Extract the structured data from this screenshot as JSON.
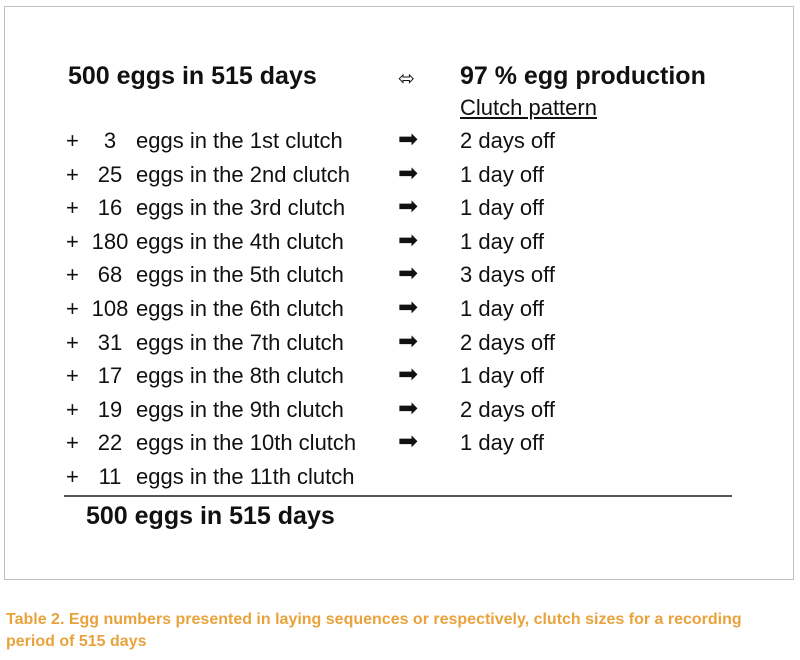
{
  "table": {
    "header_left": "500 eggs in 515 days",
    "header_arrow": "⬄",
    "header_right": "97 % egg production",
    "subheader": "Clutch pattern",
    "rows": [
      {
        "plus": "+",
        "count": "3",
        "desc": "eggs in the 1st clutch",
        "arrow": "➡",
        "off": "2 days off"
      },
      {
        "plus": "+",
        "count": "25",
        "desc": "eggs in the 2nd clutch",
        "arrow": "➡",
        "off": "1 day off"
      },
      {
        "plus": "+",
        "count": "16",
        "desc": "eggs in the 3rd clutch",
        "arrow": "➡",
        "off": "1 day off"
      },
      {
        "plus": "+",
        "count": "180",
        "desc": "eggs in the 4th clutch",
        "arrow": "➡",
        "off": "1 day off"
      },
      {
        "plus": "+",
        "count": "68",
        "desc": "eggs in the 5th clutch",
        "arrow": "➡",
        "off": "3 days off"
      },
      {
        "plus": "+",
        "count": "108",
        "desc": "eggs in the 6th clutch",
        "arrow": "➡",
        "off": "1 day off"
      },
      {
        "plus": "+",
        "count": "31",
        "desc": "eggs in the 7th clutch",
        "arrow": "➡",
        "off": "2 days off"
      },
      {
        "plus": "+",
        "count": "17",
        "desc": "eggs in the 8th clutch",
        "arrow": "➡",
        "off": "1 day off"
      },
      {
        "plus": "+",
        "count": "19",
        "desc": "eggs in the 9th clutch",
        "arrow": "➡",
        "off": "2 days off"
      },
      {
        "plus": "+",
        "count": "22",
        "desc": "eggs in the 10th clutch",
        "arrow": "➡",
        "off": "1 day off"
      },
      {
        "plus": "+",
        "count": "11",
        "desc": "eggs in the 11th clutch",
        "arrow": "",
        "off": ""
      }
    ],
    "total": "500 eggs in 515 days"
  },
  "caption": "Table 2. Egg numbers presented in laying sequences or respectively, clutch sizes for a recording period of 515 days",
  "colors": {
    "caption": "#e8a33c",
    "frame_border": "#bfbfbf",
    "rule": "#555555"
  }
}
